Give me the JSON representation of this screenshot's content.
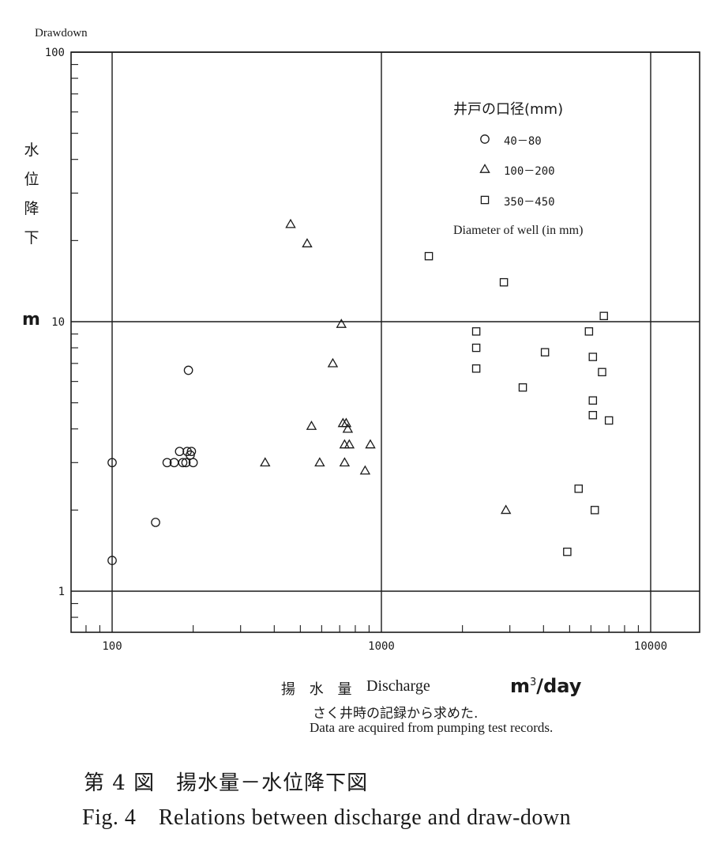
{
  "chart_data": {
    "type": "scatter",
    "title": "",
    "xlabel_jp": "揚 水 量",
    "xlabel": "Discharge",
    "x_unit_base": "m",
    "x_unit_exp": "3",
    "x_unit_rest": "/day",
    "ylabel": "Drawdown",
    "ylabel_jp": "水位降下",
    "y_unit": "m",
    "x_scale": "log",
    "y_scale": "log",
    "xlim": [
      72,
      15500
    ],
    "ylim": [
      0.72,
      100
    ],
    "x_ticks": [
      100,
      1000,
      10000
    ],
    "x_tick_labels": [
      "100",
      "1000",
      "10000"
    ],
    "y_ticks": [
      1,
      10,
      100
    ],
    "y_tick_labels": [
      "1",
      "10",
      "100"
    ],
    "grid": true,
    "legend_title": "井戸の口径(mm)",
    "legend_subtitle": "Diameter of well (in mm)",
    "legend_position": "top-right",
    "series": [
      {
        "name": "40－80",
        "marker": "circle",
        "points": [
          [
            100,
            3.0
          ],
          [
            100,
            1.3
          ],
          [
            145,
            1.8
          ],
          [
            160,
            3.0
          ],
          [
            170,
            3.0
          ],
          [
            178,
            3.3
          ],
          [
            183,
            3.0
          ],
          [
            188,
            3.0
          ],
          [
            190,
            3.3
          ],
          [
            192,
            6.6
          ],
          [
            195,
            3.2
          ],
          [
            197,
            3.3
          ],
          [
            200,
            3.0
          ]
        ]
      },
      {
        "name": "100－200",
        "marker": "triangle",
        "points": [
          [
            460,
            23.0
          ],
          [
            530,
            19.5
          ],
          [
            710,
            9.8
          ],
          [
            660,
            7.0
          ],
          [
            550,
            4.1
          ],
          [
            720,
            4.2
          ],
          [
            740,
            4.2
          ],
          [
            750,
            4.0
          ],
          [
            730,
            3.5
          ],
          [
            760,
            3.5
          ],
          [
            910,
            3.5
          ],
          [
            370,
            3.0
          ],
          [
            590,
            3.0
          ],
          [
            730,
            3.0
          ],
          [
            870,
            2.8
          ],
          [
            2900,
            2.0
          ]
        ]
      },
      {
        "name": "350－450",
        "marker": "square",
        "points": [
          [
            1500,
            17.5
          ],
          [
            2850,
            14.0
          ],
          [
            6700,
            10.5
          ],
          [
            2250,
            9.2
          ],
          [
            5900,
            9.2
          ],
          [
            2250,
            8.0
          ],
          [
            4050,
            7.7
          ],
          [
            6100,
            7.4
          ],
          [
            2250,
            6.7
          ],
          [
            6600,
            6.5
          ],
          [
            3350,
            5.7
          ],
          [
            6100,
            5.1
          ],
          [
            6100,
            4.5
          ],
          [
            7000,
            4.3
          ],
          [
            5400,
            2.4
          ],
          [
            6200,
            2.0
          ],
          [
            4900,
            1.4
          ]
        ]
      }
    ]
  },
  "notes": {
    "jp": "さく井時の記録から求めた.",
    "en": "Data are acquired from pumping test records."
  },
  "caption": {
    "jp": "第 4 図　揚水量－水位降下図",
    "en": "Fig. 4　Relations between discharge and draw-down"
  },
  "colors": {
    "ink": "#1a1a1a",
    "background": "#ffffff"
  }
}
